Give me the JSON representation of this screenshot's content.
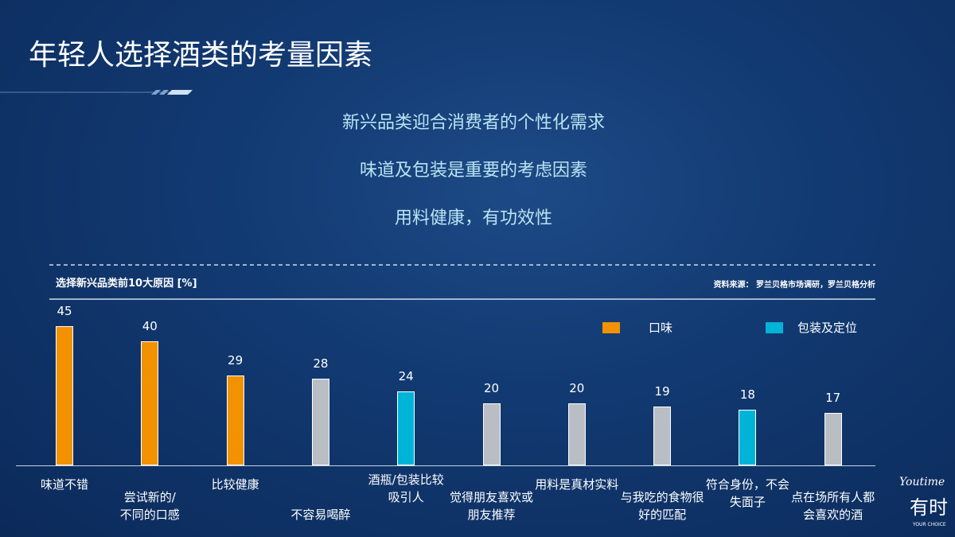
{
  "title": "年轻人选择酒类的考量因素",
  "points": [
    "新兴品类迎合消费者的个性化需求",
    "味道及包装是重要的考虑因素",
    "用料健康，有功效性"
  ],
  "logo": {
    "script": "Youtime",
    "name": "有时",
    "tagline": "YOUR CHOICE"
  },
  "chart_data": {
    "type": "bar",
    "title": "选择新兴品类前10大原因 [%]",
    "source": "资料来源： 罗兰贝格市场调研，罗兰贝格分析",
    "categories": [
      "味道不错",
      "尝试新的/\n不同的口感",
      "比较健康",
      "不容易喝醉",
      "酒瓶/包装比较\n吸引人",
      "觉得朋友喜欢或\n朋友推荐",
      "用料是真材实料",
      "与我吃的食物很\n好的匹配",
      "符合身份，不会\n失面子",
      "点在场所有人都\n会喜欢的酒"
    ],
    "values": [
      45,
      40,
      29,
      28,
      24,
      20,
      20,
      19,
      18,
      17
    ],
    "colors": [
      "#f39200",
      "#f39200",
      "#f39200",
      "#b9bec4",
      "#00b4d8",
      "#b9bec4",
      "#b9bec4",
      "#b9bec4",
      "#00b4d8",
      "#b9bec4"
    ],
    "legend": [
      {
        "name": "口味",
        "color": "#f39200"
      },
      {
        "name": "包装及定位",
        "color": "#00b4d8"
      }
    ]
  }
}
